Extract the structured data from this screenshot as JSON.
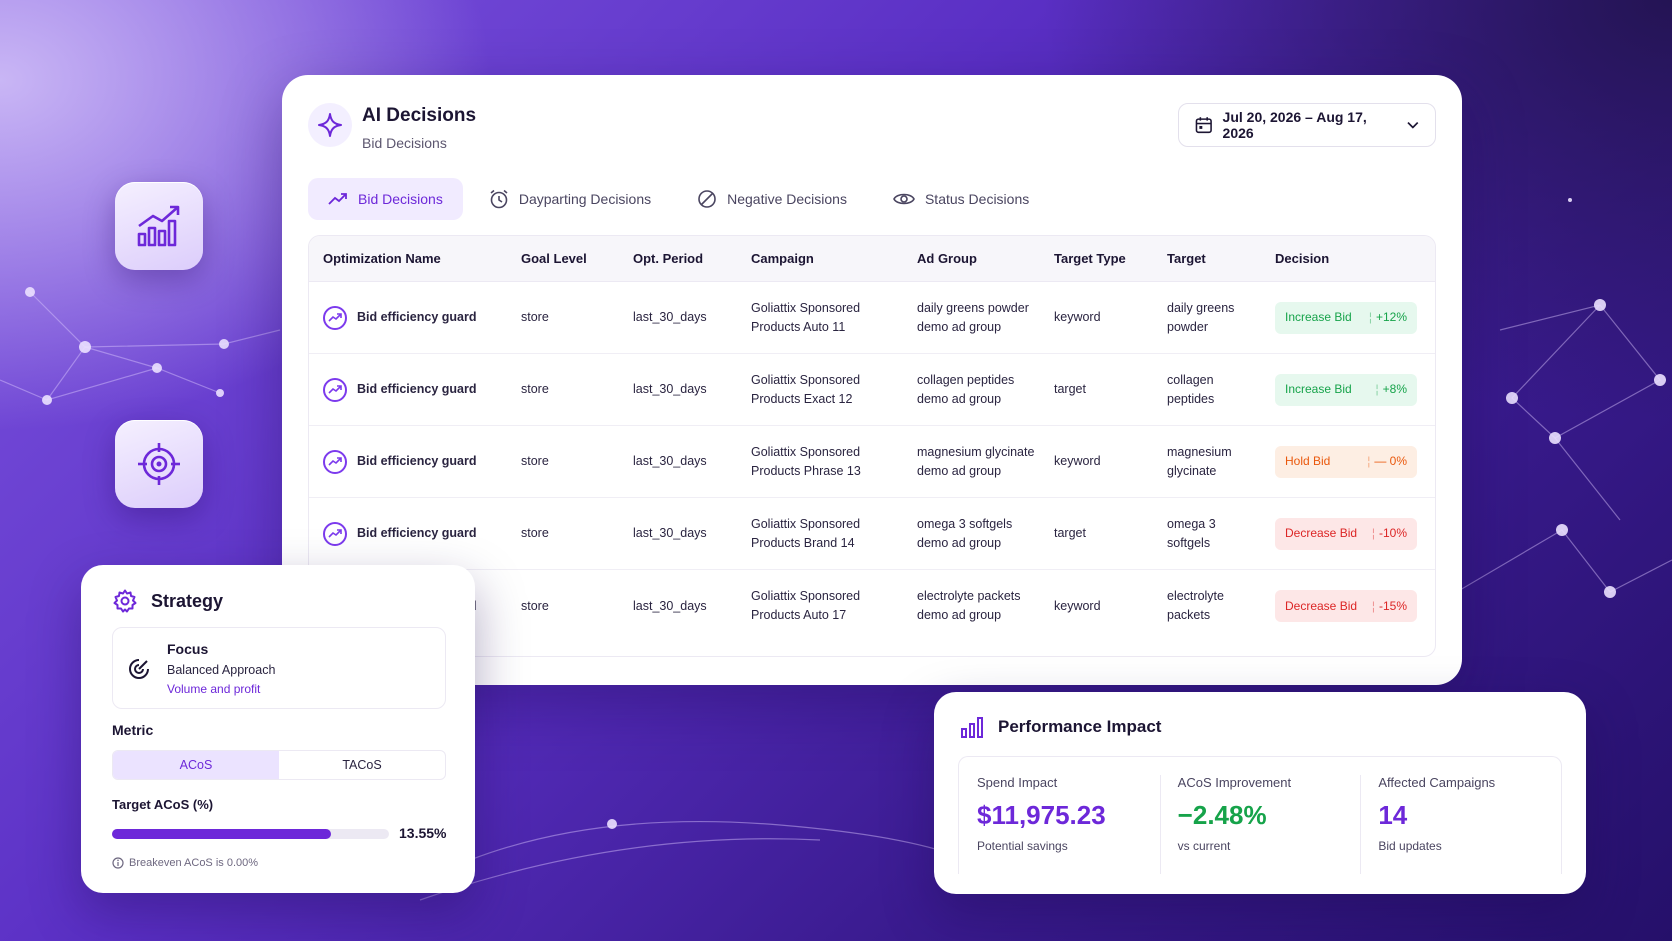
{
  "header": {
    "title": "AI Decisions",
    "subtitle": "Bid Decisions",
    "date_range": "Jul 20, 2026 – Aug 17, 2026"
  },
  "tabs": [
    {
      "label": "Bid Decisions",
      "icon": "trend-up-icon",
      "active": true
    },
    {
      "label": "Dayparting Decisions",
      "icon": "clock-icon",
      "active": false
    },
    {
      "label": "Negative Decisions",
      "icon": "block-icon",
      "active": false
    },
    {
      "label": "Status Decisions",
      "icon": "eye-icon",
      "active": false
    }
  ],
  "table": {
    "columns": [
      "Optimization Name",
      "Goal Level",
      "Opt. Period",
      "Campaign",
      "Ad Group",
      "Target Type",
      "Target",
      "Decision"
    ],
    "rows": [
      {
        "name": "Bid efficiency guard",
        "goal": "store",
        "period": "last_30_days",
        "campaign": "Goliattix Sponsored Products Auto 11",
        "ad_group": "daily greens powder demo ad group",
        "target_type": "keyword",
        "target": "daily greens powder",
        "decision": "Increase Bid",
        "delta": "+12%",
        "kind": "up"
      },
      {
        "name": "Bid efficiency guard",
        "goal": "store",
        "period": "last_30_days",
        "campaign": "Goliattix Sponsored Products Exact 12",
        "ad_group": "collagen peptides demo ad group",
        "target_type": "target",
        "target": "collagen peptides",
        "decision": "Increase Bid",
        "delta": "+8%",
        "kind": "up"
      },
      {
        "name": "Bid efficiency guard",
        "goal": "store",
        "period": "last_30_days",
        "campaign": "Goliattix Sponsored Products Phrase 13",
        "ad_group": "magnesium glycinate demo ad group",
        "target_type": "keyword",
        "target": "magnesium glycinate",
        "decision": "Hold Bid",
        "delta": "— 0%",
        "kind": "hold"
      },
      {
        "name": "Bid efficiency guard",
        "goal": "store",
        "period": "last_30_days",
        "campaign": "Goliattix Sponsored Products Brand 14",
        "ad_group": "omega 3 softgels demo ad group",
        "target_type": "target",
        "target": "omega 3 softgels",
        "decision": "Decrease Bid",
        "delta": "-10%",
        "kind": "down"
      },
      {
        "name": "Bid efficiency guard",
        "goal": "store",
        "period": "last_30_days",
        "campaign": "Goliattix Sponsored Products Auto 17",
        "ad_group": "electrolyte packets demo ad group",
        "target_type": "keyword",
        "target": "electrolyte packets",
        "decision": "Decrease Bid",
        "delta": "-15%",
        "kind": "down"
      }
    ]
  },
  "strategy": {
    "title": "Strategy",
    "focus_label": "Focus",
    "focus_value": "Balanced Approach",
    "focus_sub": "Volume and profit",
    "metric_label": "Metric",
    "metric_options": [
      "ACoS",
      "TACoS"
    ],
    "metric_selected": "ACoS",
    "target_label": "Target ACoS (%)",
    "target_value": "13.55%",
    "target_fill_fraction": 0.79,
    "breakeven": "Breakeven ACoS is 0.00%"
  },
  "performance": {
    "title": "Performance Impact",
    "stats": [
      {
        "label": "Spend Impact",
        "value": "$11,975.23",
        "sub": "Potential savings",
        "tone": "purple"
      },
      {
        "label": "ACoS Improvement",
        "value": "−2.48%",
        "sub": "vs current",
        "tone": "green"
      },
      {
        "label": "Affected Campaigns",
        "value": "14",
        "sub": "Bid updates",
        "tone": "purple"
      }
    ]
  },
  "colors": {
    "accent": "#6d28d9",
    "increase": "#16a34a",
    "hold": "#ea580c",
    "decrease": "#dc2626"
  }
}
